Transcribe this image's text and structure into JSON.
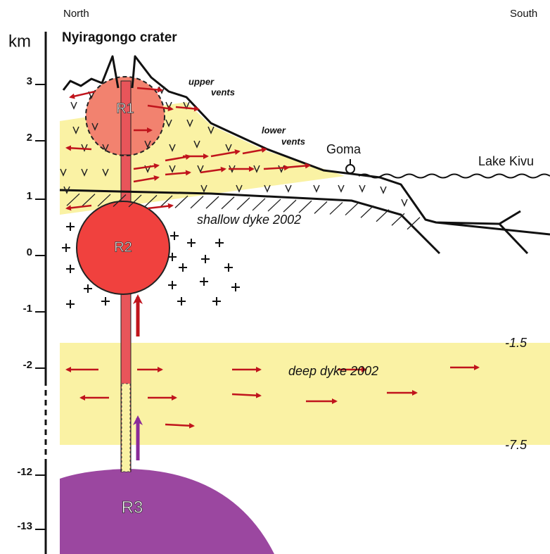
{
  "header": {
    "north": "North",
    "south": "South",
    "unit": "km",
    "title": "Nyiragongo crater"
  },
  "depth_axis": {
    "labels": [
      "3",
      "2",
      "1",
      "0",
      "-1",
      "-2",
      "-12",
      "-13"
    ]
  },
  "annotations": {
    "upper_vents": [
      "upper",
      "vents"
    ],
    "lower_vents": [
      "lower",
      "vents"
    ],
    "goma": "Goma",
    "lake": "Lake Kivu",
    "shallow_dyke": "shallow dyke 2002",
    "deep_dyke": "deep dyke 2002",
    "deep_top": "-1.5",
    "deep_bottom": "-7.5"
  },
  "reservoirs": [
    "R1",
    "R2",
    "R3"
  ]
}
